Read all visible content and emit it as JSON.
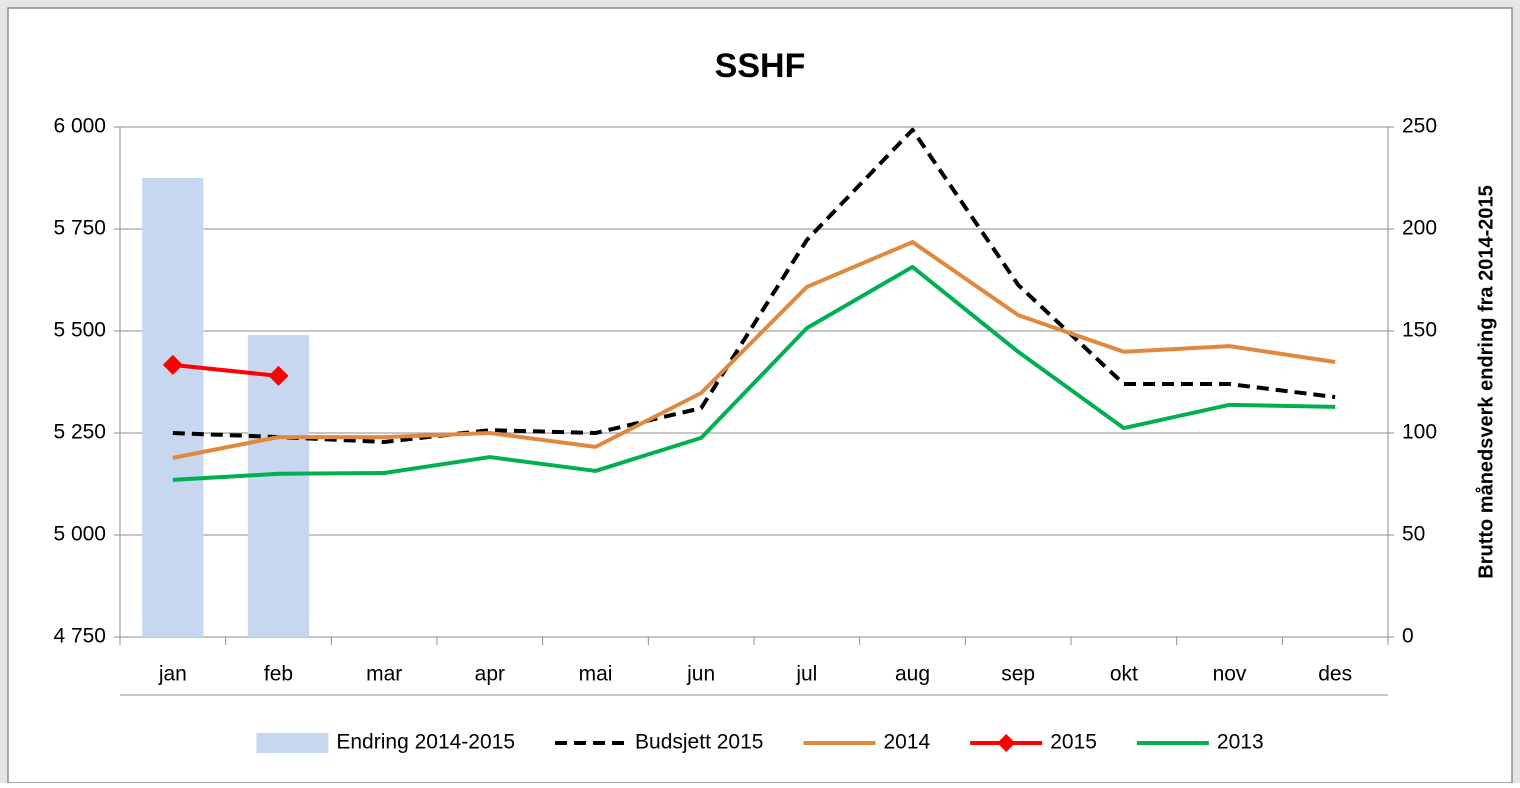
{
  "chart_data": {
    "type": "combo",
    "title": "SSHF",
    "y2label": "Brutto månedsverk endring fra 2014-2015",
    "categories": [
      "jan",
      "feb",
      "mar",
      "apr",
      "mai",
      "jun",
      "jul",
      "aug",
      "sep",
      "okt",
      "nov",
      "des"
    ],
    "ylim": [
      4750,
      6000
    ],
    "yticks": [
      {
        "value": 4750,
        "label": "4 750"
      },
      {
        "value": 5000,
        "label": "5 000"
      },
      {
        "value": 5250,
        "label": "5 250"
      },
      {
        "value": 5500,
        "label": "5 500"
      },
      {
        "value": 5750,
        "label": "5 750"
      },
      {
        "value": 6000,
        "label": "6 000"
      }
    ],
    "y2lim": [
      0,
      250
    ],
    "y2ticks": [
      0,
      50,
      100,
      150,
      200,
      250
    ],
    "grid": true,
    "legend": "bottom",
    "series": [
      {
        "name": "Endring 2014-2015",
        "type": "bar",
        "axis": "y2",
        "color": "#c6d7ef",
        "values": [
          225,
          148,
          null,
          null,
          null,
          null,
          null,
          null,
          null,
          null,
          null,
          null
        ]
      },
      {
        "name": "Budsjett 2015",
        "type": "line",
        "line_style": "dashed",
        "color": "#000000",
        "values": [
          5250,
          5240,
          5228,
          5257,
          5250,
          5311,
          5723,
          5993,
          5613,
          5370,
          5370,
          5338
        ]
      },
      {
        "name": "2014",
        "type": "line",
        "line_style": "solid",
        "color": "#e0883e",
        "values": [
          5189,
          5240,
          5240,
          5250,
          5216,
          5348,
          5608,
          5718,
          5539,
          5449,
          5463,
          5424
        ]
      },
      {
        "name": "2015",
        "type": "line",
        "line_style": "solid",
        "marker": "diamond",
        "color": "#ff0000",
        "values": [
          5417,
          5390,
          null,
          null,
          null,
          null,
          null,
          null,
          null,
          null,
          null,
          null
        ]
      },
      {
        "name": "2013",
        "type": "line",
        "line_style": "solid",
        "color": "#00b050",
        "values": [
          5135,
          5150,
          5152,
          5191,
          5157,
          5238,
          5507,
          5657,
          5449,
          5262,
          5319,
          5314
        ]
      }
    ]
  }
}
